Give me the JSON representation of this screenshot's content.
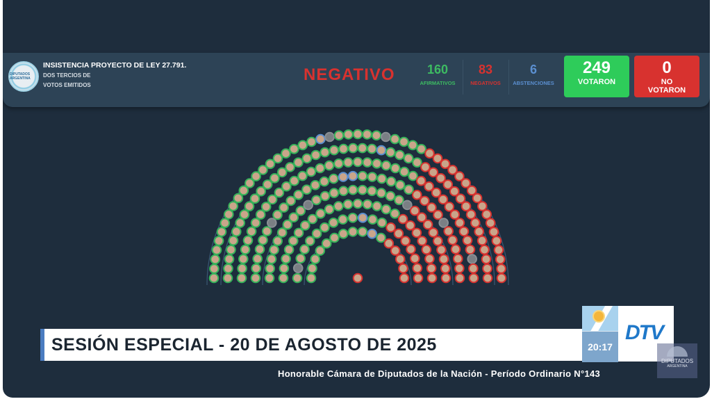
{
  "header": {
    "logo_text": "DIPUTADOS ARGENTINA",
    "title": "INSISTENCIA PROYECTO DE LEY 27.791.",
    "subtitle_line1": "DOS TERCIOS DE",
    "subtitle_line2": "VOTOS EMITIDOS",
    "result": "NEGATIVO",
    "afirmativos": {
      "value": "160",
      "label": "AFIRMATIVOS"
    },
    "negativos": {
      "value": "83",
      "label": "NEGATIVOS"
    },
    "abstenciones": {
      "value": "6",
      "label": "ABSTENCIONES"
    },
    "votaron": {
      "value": "249",
      "label": "VOTARON"
    },
    "no_votaron": {
      "value": "0",
      "label_line1": "NO",
      "label_line2": "VOTARON"
    }
  },
  "colors": {
    "afirmativo": "#36b35a",
    "negativo": "#d8322f",
    "abstencion": "#5b8fd0",
    "ausente": "#8a8f94",
    "votaron_box": "#2ecc5a",
    "no_votaron_box": "#d8322f"
  },
  "chamber": {
    "seats": 257,
    "afirmativos": 160,
    "negativos": 83,
    "abstenciones": 6
  },
  "banner": {
    "title": "SESIÓN ESPECIAL - 20 DE AGOSTO DE 2025",
    "time": "20:17",
    "channel": "DTV"
  },
  "footer": "Honorable Cámara de Diputados de la Nación - Período Ordinario N°143",
  "watermark": {
    "line1": "DIPUTADOS",
    "line2": "ARGENTINA"
  }
}
